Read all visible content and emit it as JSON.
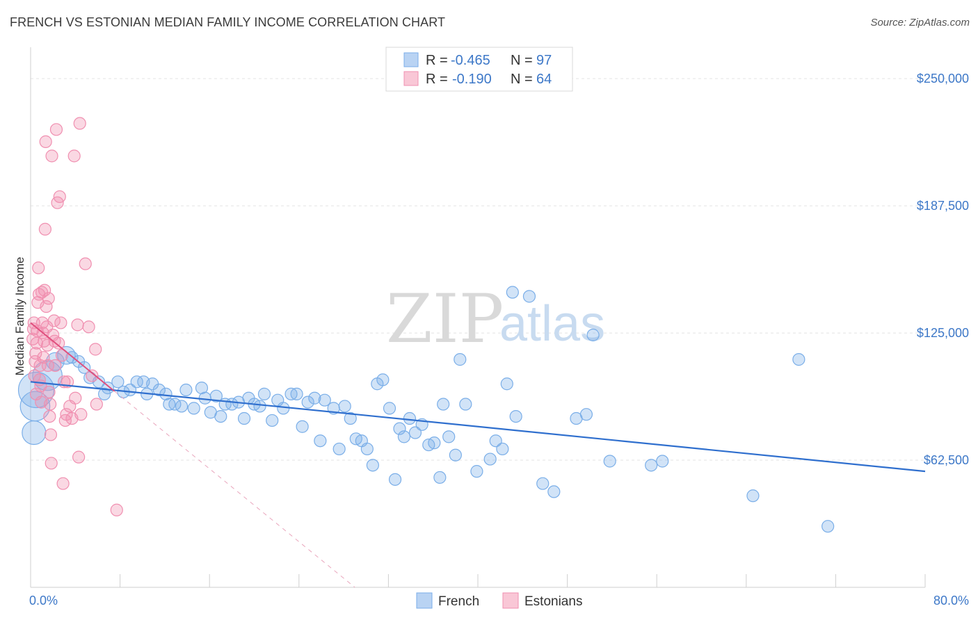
{
  "header": {
    "title": "FRENCH VS ESTONIAN MEDIAN FAMILY INCOME CORRELATION CHART",
    "source": "Source: ZipAtlas.com"
  },
  "watermark": {
    "zip": "ZIP",
    "atlas": "atlas"
  },
  "colors": {
    "french": "#7aaee8",
    "french_line": "#2f6fce",
    "estonian": "#f08fb0",
    "estonian_line": "#e0507e",
    "axis_text": "#3d78c8"
  },
  "legend": {
    "rows": [
      {
        "r_label": "R =",
        "r_value": "-0.465",
        "n_label": "N =",
        "n_value": "97"
      },
      {
        "r_label": "R =",
        "r_value": "-0.190",
        "n_label": "N =",
        "n_value": "64"
      }
    ]
  },
  "bottom_legend": [
    "French",
    "Estonians"
  ],
  "chart_data": {
    "type": "scatter",
    "title": "FRENCH VS ESTONIAN MEDIAN FAMILY INCOME CORRELATION CHART",
    "ylabel": "Median Family Income",
    "xlim": [
      0,
      80
    ],
    "ylim": [
      0,
      262000
    ],
    "x_tick_labels": [
      "0.0%",
      "80.0%"
    ],
    "y_ticks": [
      62500,
      125000,
      187500,
      250000
    ],
    "y_tick_labels": [
      "$62,500",
      "$125,000",
      "$187,500",
      "$250,000"
    ],
    "grid": true,
    "legend_placement": "top-center",
    "series": [
      {
        "name": "French",
        "r": -0.465,
        "n": 97,
        "trend": {
          "x": [
            0,
            80
          ],
          "y": [
            101000,
            57000
          ]
        },
        "points": [
          [
            0.3,
            76000,
            2
          ],
          [
            0.4,
            89000,
            2.5
          ],
          [
            0.5,
            97000,
            3
          ],
          [
            1.5,
            104000,
            2.5
          ],
          [
            2.2,
            111000,
            1.5
          ],
          [
            3.2,
            114000,
            1.5
          ],
          [
            3.7,
            113000,
            1
          ],
          [
            4.3,
            111000,
            1
          ],
          [
            4.8,
            108000,
            1
          ],
          [
            5.3,
            103000,
            1
          ],
          [
            6.1,
            101000,
            1
          ],
          [
            6.6,
            95000,
            1
          ],
          [
            6.9,
            98000,
            1
          ],
          [
            7.8,
            101000,
            1
          ],
          [
            8.3,
            96000,
            1
          ],
          [
            8.9,
            97000,
            1
          ],
          [
            9.5,
            101000,
            1
          ],
          [
            10.1,
            101000,
            1
          ],
          [
            10.4,
            95000,
            1
          ],
          [
            10.9,
            100000,
            1
          ],
          [
            11.5,
            97000,
            1
          ],
          [
            12.1,
            95000,
            1
          ],
          [
            12.4,
            90000,
            1
          ],
          [
            12.9,
            90000,
            1
          ],
          [
            13.5,
            89000,
            1
          ],
          [
            13.9,
            97000,
            1
          ],
          [
            14.6,
            88000,
            1
          ],
          [
            15.3,
            98000,
            1
          ],
          [
            15.6,
            93000,
            1
          ],
          [
            16.1,
            86000,
            1
          ],
          [
            16.6,
            94000,
            1
          ],
          [
            17.0,
            84000,
            1
          ],
          [
            17.4,
            90000,
            1
          ],
          [
            18.0,
            90000,
            1
          ],
          [
            18.6,
            91000,
            1
          ],
          [
            19.1,
            83000,
            1
          ],
          [
            19.5,
            93000,
            1
          ],
          [
            20.0,
            90000,
            1
          ],
          [
            20.5,
            89000,
            1
          ],
          [
            20.9,
            95000,
            1
          ],
          [
            21.6,
            82000,
            1
          ],
          [
            22.1,
            92000,
            1
          ],
          [
            22.6,
            88000,
            1
          ],
          [
            23.3,
            95000,
            1
          ],
          [
            23.8,
            95000,
            1
          ],
          [
            24.3,
            79000,
            1
          ],
          [
            24.8,
            91000,
            1
          ],
          [
            25.4,
            93000,
            1
          ],
          [
            25.9,
            72000,
            1
          ],
          [
            26.3,
            92000,
            1
          ],
          [
            27.1,
            88000,
            1
          ],
          [
            27.6,
            68000,
            1
          ],
          [
            28.1,
            89000,
            1
          ],
          [
            28.6,
            83000,
            1
          ],
          [
            29.1,
            73000,
            1
          ],
          [
            29.6,
            72000,
            1
          ],
          [
            30.1,
            68000,
            1
          ],
          [
            30.6,
            60000,
            1
          ],
          [
            31.0,
            100000,
            1
          ],
          [
            31.5,
            102000,
            1
          ],
          [
            32.1,
            88000,
            1
          ],
          [
            32.6,
            53000,
            1
          ],
          [
            33.0,
            78000,
            1
          ],
          [
            33.4,
            74000,
            1
          ],
          [
            33.9,
            83000,
            1
          ],
          [
            34.4,
            76000,
            1
          ],
          [
            35.0,
            80000,
            1
          ],
          [
            35.6,
            70000,
            1
          ],
          [
            36.1,
            71000,
            1
          ],
          [
            36.6,
            54000,
            1
          ],
          [
            36.9,
            90000,
            1
          ],
          [
            37.4,
            74000,
            1
          ],
          [
            38.0,
            65000,
            1
          ],
          [
            38.4,
            112000,
            1
          ],
          [
            38.9,
            90000,
            1
          ],
          [
            39.9,
            57000,
            1
          ],
          [
            41.1,
            63000,
            1
          ],
          [
            41.6,
            72000,
            1
          ],
          [
            42.2,
            68000,
            1
          ],
          [
            42.6,
            100000,
            1
          ],
          [
            43.1,
            145000,
            1
          ],
          [
            43.4,
            84000,
            1
          ],
          [
            44.6,
            143000,
            1
          ],
          [
            45.8,
            51000,
            1
          ],
          [
            46.8,
            47000,
            1
          ],
          [
            48.8,
            83000,
            1
          ],
          [
            49.7,
            85000,
            1
          ],
          [
            50.3,
            124000,
            1
          ],
          [
            51.8,
            62000,
            1
          ],
          [
            55.5,
            60000,
            1
          ],
          [
            56.5,
            62000,
            1
          ],
          [
            64.6,
            45000,
            1
          ],
          [
            68.7,
            112000,
            1
          ],
          [
            71.3,
            30000,
            1
          ]
        ]
      },
      {
        "name": "Estonians",
        "r": -0.19,
        "n": 64,
        "trend": {
          "x": [
            0,
            29.0
          ],
          "y": [
            130000,
            0
          ]
        },
        "trend_solid_until_x": 7.5,
        "points": [
          [
            0.2,
            122000,
            1
          ],
          [
            0.25,
            127000,
            1
          ],
          [
            0.3,
            130000,
            1
          ],
          [
            0.35,
            104000,
            1
          ],
          [
            0.4,
            111000,
            1
          ],
          [
            0.45,
            115000,
            1
          ],
          [
            0.5,
            95000,
            1
          ],
          [
            0.55,
            120000,
            1
          ],
          [
            0.6,
            126000,
            1
          ],
          [
            0.65,
            140000,
            1
          ],
          [
            0.7,
            157000,
            1
          ],
          [
            0.75,
            144000,
            1
          ],
          [
            0.8,
            102000,
            1
          ],
          [
            0.85,
            109000,
            1
          ],
          [
            0.9,
            99000,
            1
          ],
          [
            0.95,
            91000,
            1
          ],
          [
            1.0,
            145000,
            1
          ],
          [
            1.05,
            130000,
            1
          ],
          [
            1.1,
            125000,
            1
          ],
          [
            1.15,
            113000,
            1
          ],
          [
            1.2,
            121000,
            1
          ],
          [
            1.25,
            146000,
            1
          ],
          [
            1.3,
            176000,
            1
          ],
          [
            1.35,
            219000,
            1
          ],
          [
            1.4,
            138000,
            1
          ],
          [
            1.45,
            128000,
            1
          ],
          [
            1.5,
            119000,
            1
          ],
          [
            1.55,
            109000,
            1
          ],
          [
            1.6,
            142000,
            1
          ],
          [
            1.65,
            96000,
            1
          ],
          [
            1.7,
            84000,
            1
          ],
          [
            1.75,
            90000,
            1
          ],
          [
            1.8,
            75000,
            1
          ],
          [
            1.85,
            61000,
            1
          ],
          [
            1.9,
            212000,
            1
          ],
          [
            2.0,
            124000,
            1
          ],
          [
            2.1,
            131000,
            1
          ],
          [
            2.15,
            121000,
            1
          ],
          [
            2.2,
            109000,
            1
          ],
          [
            2.3,
            225000,
            1
          ],
          [
            2.4,
            189000,
            1
          ],
          [
            2.5,
            120000,
            1
          ],
          [
            2.6,
            192000,
            1
          ],
          [
            2.7,
            130000,
            1
          ],
          [
            2.8,
            114000,
            1
          ],
          [
            2.9,
            51000,
            1
          ],
          [
            3.0,
            101000,
            1
          ],
          [
            3.1,
            82000,
            1
          ],
          [
            3.2,
            85000,
            1
          ],
          [
            3.3,
            101000,
            1
          ],
          [
            3.5,
            89000,
            1
          ],
          [
            3.7,
            83000,
            1
          ],
          [
            3.9,
            212000,
            1
          ],
          [
            4.0,
            93000,
            1
          ],
          [
            4.2,
            129000,
            1
          ],
          [
            4.3,
            64000,
            1
          ],
          [
            4.4,
            228000,
            1
          ],
          [
            4.5,
            85000,
            1
          ],
          [
            4.9,
            159000,
            1
          ],
          [
            5.2,
            128000,
            1
          ],
          [
            5.5,
            104000,
            1
          ],
          [
            5.8,
            117000,
            1
          ],
          [
            5.9,
            90000,
            1
          ],
          [
            7.7,
            38000,
            1
          ]
        ]
      }
    ]
  }
}
